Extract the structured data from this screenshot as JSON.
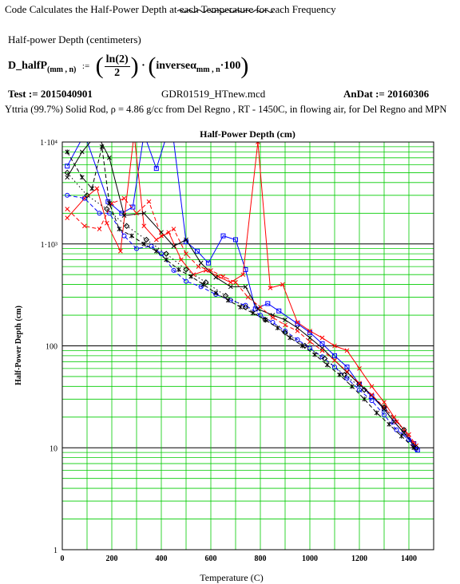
{
  "header": {
    "title": "Code Calculates the Half-Power Depth at each Temperature for each Frequency",
    "section_label": "Half-power Depth (centimeters)",
    "formula": {
      "lhs": "D_halfP",
      "lhs_sub": "(mm , n)",
      "equals": ":=",
      "numerator": "ln(2)",
      "denominator": "2",
      "dot": "·",
      "rhs": "inverseα",
      "rhs_sub": "mm , n",
      "rhs_tail": "·100"
    },
    "test_label": "Test := 2015040901",
    "file_name": "GDR01519_HTnew.mcd",
    "anDat_label": "AnDat := 20160306",
    "description": "Yttria (99.7%) Solid Rod,  ρ = 4.86 g/cc from Del Regno , RT - 1450C, in flowing air, for Del Regno and MPN"
  },
  "chart_data": {
    "type": "line",
    "title": "Half-Power Depth (cm)",
    "xlabel": "Temperature (C)",
    "ylabel": "Half-Power Depth (cm)",
    "xlim": [
      0,
      1500
    ],
    "ylim": [
      1,
      10000
    ],
    "y_scale": "log",
    "grid": true,
    "grid_color": "#00cc00",
    "plot_background": "#ffffff",
    "x_ticks": [
      "0",
      "200",
      "400",
      "600",
      "800",
      "1000",
      "1200",
      "1400"
    ],
    "x_tick_values": [
      0,
      200,
      400,
      600,
      800,
      1000,
      1200,
      1400
    ],
    "y_ticks": [
      "1",
      "10",
      "100",
      "1·10³",
      "1·10⁴"
    ],
    "y_tick_values": [
      1,
      10,
      100,
      1000,
      10000
    ],
    "series": [
      {
        "color": "#0000ff",
        "dash": "solid",
        "marker": "square",
        "x": [
          20,
          90,
          185,
          240,
          285,
          330,
          380,
          440,
          500,
          545,
          590,
          650,
          700,
          740,
          780,
          830,
          875,
          950,
          1000,
          1050,
          1100,
          1150,
          1200,
          1250,
          1300,
          1340,
          1380,
          1420,
          1435
        ],
        "y": [
          5800,
          12000,
          2600,
          2000,
          2300,
          12000,
          5500,
          16000,
          1050,
          850,
          650,
          1200,
          1100,
          560,
          230,
          260,
          220,
          165,
          135,
          105,
          80,
          62,
          42,
          32,
          24,
          18,
          14,
          11,
          9.5
        ]
      },
      {
        "color": "#ff0000",
        "dash": "solid",
        "marker": "x",
        "x": [
          20,
          90,
          140,
          180,
          235,
          290,
          330,
          380,
          430,
          480,
          530,
          580,
          630,
          680,
          730,
          790,
          840,
          890,
          950,
          1000,
          1050,
          1100,
          1150,
          1200,
          1250,
          1300,
          1340,
          1380,
          1420
        ],
        "y": [
          1800,
          2800,
          3500,
          1600,
          850,
          12000,
          1500,
          1100,
          1300,
          700,
          500,
          550,
          480,
          420,
          500,
          10000,
          370,
          400,
          170,
          140,
          120,
          100,
          90,
          60,
          40,
          28,
          20,
          15,
          11
        ]
      },
      {
        "color": "#000000",
        "dash": "solid",
        "marker": "x",
        "x": [
          20,
          80,
          140,
          190,
          250,
          330,
          400,
          450,
          500,
          560,
          620,
          680,
          740,
          790,
          850,
          900,
          950,
          1000,
          1050,
          1100,
          1150,
          1200,
          1250,
          1300,
          1340,
          1380,
          1420
        ],
        "y": [
          4500,
          8000,
          12000,
          7000,
          1900,
          2000,
          1300,
          950,
          1100,
          650,
          470,
          380,
          380,
          230,
          200,
          180,
          150,
          120,
          95,
          72,
          55,
          42,
          33,
          24,
          18,
          14,
          10.5
        ]
      },
      {
        "color": "#0000ff",
        "dash": "dashed",
        "marker": "circle",
        "x": [
          20,
          90,
          150,
          190,
          250,
          300,
          360,
          400,
          450,
          500,
          560,
          620,
          680,
          740,
          800,
          850,
          900,
          950,
          1000,
          1050,
          1100,
          1150,
          1200,
          1250,
          1300,
          1350,
          1400,
          1430
        ],
        "y": [
          3000,
          2800,
          2000,
          2000,
          1200,
          900,
          950,
          800,
          550,
          430,
          380,
          320,
          280,
          250,
          200,
          170,
          140,
          115,
          95,
          78,
          62,
          48,
          37,
          29,
          21,
          15,
          12,
          9.7
        ]
      },
      {
        "color": "#ff0000",
        "dash": "dashed",
        "marker": "x",
        "x": [
          20,
          90,
          150,
          200,
          250,
          300,
          350,
          400,
          450,
          500,
          550,
          600,
          650,
          700,
          750,
          800,
          850,
          900,
          950,
          1000,
          1050,
          1100,
          1150,
          1200,
          1250,
          1300,
          1350,
          1400,
          1430
        ],
        "y": [
          2200,
          1500,
          1400,
          2500,
          2800,
          2000,
          2600,
          1200,
          1400,
          800,
          600,
          550,
          480,
          420,
          300,
          240,
          190,
          160,
          140,
          110,
          90,
          72,
          56,
          43,
          33,
          25,
          18,
          13.5,
          10.5
        ]
      },
      {
        "color": "#000000",
        "dash": "dashed",
        "marker": "star",
        "x": [
          20,
          80,
          120,
          160,
          190,
          230,
          280,
          330,
          380,
          420,
          470,
          520,
          570,
          620,
          670,
          720,
          770,
          820,
          870,
          920,
          970,
          1020,
          1070,
          1120,
          1170,
          1220,
          1270,
          1320,
          1370,
          1420
        ],
        "y": [
          8000,
          4500,
          3500,
          9000,
          2500,
          1400,
          1200,
          1000,
          850,
          700,
          560,
          480,
          400,
          330,
          280,
          240,
          210,
          180,
          150,
          120,
          100,
          82,
          65,
          52,
          40,
          30,
          22,
          17,
          13,
          10
        ]
      },
      {
        "color": "#000000",
        "dash": "dotted",
        "marker": "diamond",
        "x": [
          20,
          100,
          180,
          260,
          340,
          420,
          500,
          580,
          660,
          740,
          820,
          900,
          980,
          1060,
          1140,
          1220,
          1300,
          1380,
          1430
        ],
        "y": [
          5000,
          3000,
          2200,
          1500,
          1100,
          800,
          560,
          420,
          310,
          240,
          180,
          135,
          100,
          75,
          52,
          37,
          25,
          15,
          10
        ]
      }
    ]
  }
}
